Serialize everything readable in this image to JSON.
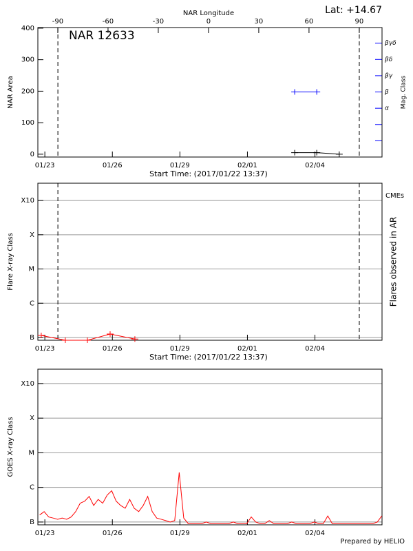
{
  "chart_data": [
    {
      "type": "line",
      "title": "NAR 12633",
      "subtitle": "Lat: +14.67",
      "x2label": "NAR Longitude",
      "xlabel": "Start Time: (2017/01/22 13:37)",
      "ylabel": "NAR Area",
      "y2label": "Mag. Class",
      "y2color": "#0000ff",
      "xlim": [
        0.12,
        15.41
      ],
      "xticks": [
        {
          "value": 0.43,
          "label": "01/23"
        },
        {
          "value": 3.43,
          "label": "01/26"
        },
        {
          "value": 6.43,
          "label": "01/29"
        },
        {
          "value": 9.43,
          "label": "02/01"
        },
        {
          "value": 12.43,
          "label": "02/04"
        }
      ],
      "x2lim": [
        -101.9,
        103.6
      ],
      "x2ticks": [
        -90,
        -60,
        -30,
        0,
        30,
        60,
        90
      ],
      "ylim": [
        -9,
        402
      ],
      "yticks": [
        0,
        100,
        200,
        300,
        400
      ],
      "y2lim": [
        0,
        7.96
      ],
      "y2ticks": [
        {
          "value": 1,
          "label": null
        },
        {
          "value": 2,
          "label": null
        },
        {
          "value": 3,
          "label": "α"
        },
        {
          "value": 4,
          "label": "β"
        },
        {
          "value": 5,
          "label": "βγ"
        },
        {
          "value": 6,
          "label": "βδ"
        },
        {
          "value": 7,
          "label": "βγδ"
        }
      ],
      "grid": false,
      "vlines": [
        1.01,
        14.4
      ],
      "series": [
        {
          "color": "#000000",
          "marker": "+",
          "x": [
            11.53,
            12.51,
            13.51
          ],
          "values": [
            5,
            5,
            0
          ]
        },
        {
          "color": "#0000ff",
          "marker": "+",
          "axis": "y2",
          "x": [
            11.53,
            12.51
          ],
          "values": [
            4,
            4
          ]
        }
      ]
    },
    {
      "type": "line",
      "xlabel": "Start Time: (2017/01/22 13:37)",
      "ylabel": "Flare X-ray Class",
      "y2label": "Flares observed in AR",
      "annotations": [
        {
          "text": "CMEs",
          "color": "#ff0000"
        }
      ],
      "xlim": [
        0.12,
        15.41
      ],
      "xticks": [
        {
          "value": 0.43,
          "label": "01/23"
        },
        {
          "value": 3.43,
          "label": "01/26"
        },
        {
          "value": 6.43,
          "label": "01/29"
        },
        {
          "value": 9.43,
          "label": "02/01"
        },
        {
          "value": 12.43,
          "label": "02/04"
        }
      ],
      "log": true,
      "ylim": [
        8.3e-08,
        0.0032
      ],
      "yticks": [
        {
          "value": 1e-07,
          "label": "B"
        },
        {
          "value": 1e-06,
          "label": "C"
        },
        {
          "value": 1e-05,
          "label": "M"
        },
        {
          "value": 0.0001,
          "label": "X"
        },
        {
          "value": 0.001,
          "label": "X10"
        }
      ],
      "grid": true,
      "vlines": [
        1.01,
        14.4
      ],
      "series": [
        {
          "color": "#ff0000",
          "marker": "+",
          "x": [
            0.27,
            1.34,
            2.32,
            3.33,
            4.43
          ],
          "values": [
            1.15e-07,
            8.3e-08,
            8.3e-08,
            1.26e-07,
            9e-08
          ]
        }
      ]
    },
    {
      "type": "line",
      "ylabel": "GOES X-ray Class",
      "xlim": [
        0.12,
        15.41
      ],
      "xticks": [
        {
          "value": 0.43,
          "label": "01/23"
        },
        {
          "value": 3.43,
          "label": "01/26"
        },
        {
          "value": 6.43,
          "label": "01/29"
        },
        {
          "value": 9.43,
          "label": "02/01"
        },
        {
          "value": 12.43,
          "label": "02/04"
        }
      ],
      "log": true,
      "ylim": [
        8.3e-08,
        0.0026
      ],
      "yticks": [
        {
          "value": 1e-07,
          "label": "B"
        },
        {
          "value": 1e-06,
          "label": "C"
        },
        {
          "value": 1e-05,
          "label": "M"
        },
        {
          "value": 0.0001,
          "label": "X"
        },
        {
          "value": 0.001,
          "label": "X10"
        }
      ],
      "grid": true,
      "series": [
        {
          "color": "#ff0000",
          "x": [
            0.2,
            0.4,
            0.6,
            0.8,
            1.0,
            1.2,
            1.4,
            1.6,
            1.8,
            2.0,
            2.2,
            2.4,
            2.6,
            2.8,
            3.0,
            3.2,
            3.4,
            3.6,
            3.8,
            4.0,
            4.2,
            4.4,
            4.6,
            4.8,
            5.0,
            5.2,
            5.4,
            5.6,
            5.8,
            6.0,
            6.2,
            6.4,
            6.6,
            6.8,
            7.0,
            7.2,
            7.4,
            7.6,
            7.8,
            8.0,
            8.2,
            8.4,
            8.6,
            8.8,
            9.0,
            9.2,
            9.4,
            9.6,
            9.8,
            10.0,
            10.2,
            10.4,
            10.6,
            10.8,
            11.0,
            11.2,
            11.4,
            11.6,
            11.8,
            12.0,
            12.2,
            12.4,
            12.6,
            12.8,
            13.0,
            13.2,
            13.4,
            13.6,
            13.8,
            14.0,
            14.2,
            14.4,
            14.6,
            14.8,
            15.0,
            15.2,
            15.4
          ],
          "values": [
            1.6e-07,
            2e-07,
            1.4e-07,
            1.3e-07,
            1.2e-07,
            1.3e-07,
            1.2e-07,
            1.4e-07,
            2e-07,
            3.5e-07,
            4e-07,
            5.5e-07,
            3e-07,
            4.5e-07,
            3.5e-07,
            6e-07,
            8e-07,
            4e-07,
            3e-07,
            2.5e-07,
            4.5e-07,
            2.5e-07,
            2e-07,
            3e-07,
            5.5e-07,
            2e-07,
            1.3e-07,
            1.2e-07,
            1.1e-07,
            1e-07,
            1.1e-07,
            2.7e-06,
            1.3e-07,
            9e-08,
            9e-08,
            9e-08,
            9e-08,
            1e-07,
            9e-08,
            9e-08,
            9e-08,
            9e-08,
            9e-08,
            1e-07,
            9e-08,
            9e-08,
            9e-08,
            1.4e-07,
            1e-07,
            9e-08,
            9e-08,
            1.1e-07,
            9e-08,
            9e-08,
            9e-08,
            9e-08,
            1e-07,
            9e-08,
            9e-08,
            9e-08,
            9e-08,
            1e-07,
            9e-08,
            9e-08,
            1.5e-07,
            9e-08,
            9e-08,
            9e-08,
            9e-08,
            9e-08,
            9e-08,
            9e-08,
            9e-08,
            9e-08,
            9e-08,
            1e-07,
            1.5e-07
          ]
        }
      ]
    }
  ],
  "footer": "Prepared by HELIO"
}
